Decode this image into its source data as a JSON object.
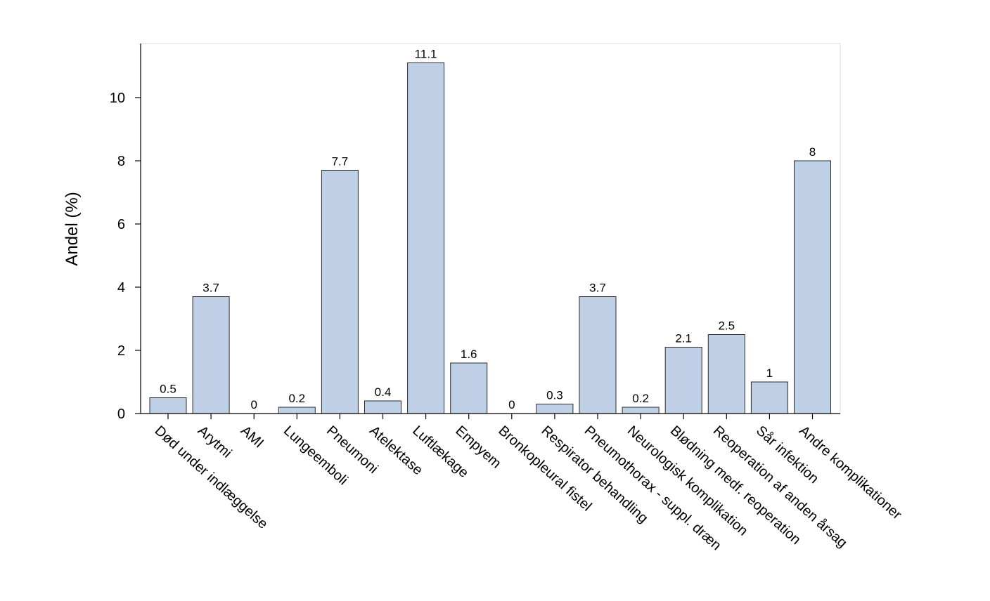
{
  "chart_data": {
    "type": "bar",
    "ylabel": "Andel (%)",
    "xlabel": "",
    "ylim": [
      0,
      11.7
    ],
    "yticks": [
      0,
      2,
      4,
      6,
      8,
      10
    ],
    "grid": false,
    "bar_color": "#bfcfe6",
    "bar_edge_color": "#2b2b2b",
    "categories": [
      "Død under indlæggelse",
      "Arytmi",
      "AMI",
      "Lungeemboli",
      "Pneumoni",
      "Atelektase",
      "Luftlækage",
      "Empyem",
      "Bronkopleural fistel",
      "Respirator behandling",
      "Pneumothorax - suppl. dræn",
      "Neurologisk komplikation",
      "Blødning medf. reoperation",
      "Reoperation af anden årsag",
      "Sår infektion",
      "Andre komplikationer"
    ],
    "values": [
      0.5,
      3.7,
      0,
      0.2,
      7.7,
      0.4,
      11.1,
      1.6,
      0,
      0.3,
      3.7,
      0.2,
      2.1,
      2.5,
      1,
      8
    ],
    "value_labels": [
      "0.5",
      "3.7",
      "0",
      "0.2",
      "7.7",
      "0.4",
      "11.1",
      "1.6",
      "0",
      "0.3",
      "3.7",
      "0.2",
      "2.1",
      "2.5",
      "1",
      "8"
    ]
  }
}
